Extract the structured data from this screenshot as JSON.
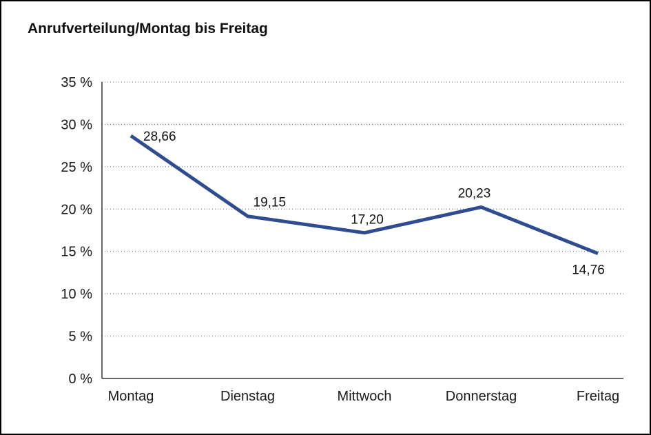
{
  "title": "Anrufverteilung/Montag bis Freitag",
  "chart_data": {
    "type": "line",
    "title": "Anrufverteilung/Montag bis Freitag",
    "categories": [
      "Montag",
      "Dienstag",
      "Mittwoch",
      "Donnerstag",
      "Freitag"
    ],
    "values": [
      28.66,
      19.15,
      17.2,
      20.23,
      14.76
    ],
    "value_labels": [
      "28,66",
      "19,15",
      "17,20",
      "20,23",
      "14,76"
    ],
    "label_placements": [
      "right",
      "above-right",
      "above",
      "above-left",
      "below"
    ],
    "xlabel": "",
    "ylabel": "",
    "ylim": [
      0,
      35
    ],
    "ytick_step": 5,
    "ytick_labels": [
      "0 %",
      "5 %",
      "10 %",
      "15 %",
      "20 %",
      "25 %",
      "30 %",
      "35 %"
    ],
    "grid": "horizontal-dotted",
    "legend": "none",
    "line_color": "#2E4C8F",
    "text_color": "#1a1a1a"
  }
}
